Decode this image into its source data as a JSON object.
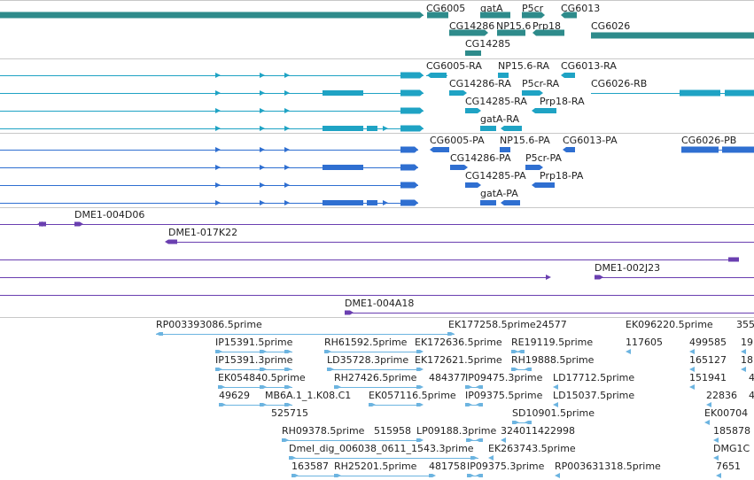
{
  "colors": {
    "gene": "#2e8b8b",
    "mrna": "#1fa3c4",
    "protein": "#2f6fd1",
    "clone": "#6a3fb0",
    "est": "#6cb4e0",
    "divider": "#c8c8c8"
  },
  "tracks": [
    {
      "name": "gene",
      "color": "#2e8b8b",
      "features": [
        {
          "label": "CG6005"
        },
        {
          "label": "gatA"
        },
        {
          "label": "P5cr"
        },
        {
          "label": "CG6013"
        },
        {
          "label": "CG14286"
        },
        {
          "label": "NP15.6"
        },
        {
          "label": "Prp18"
        },
        {
          "label": "CG6026"
        },
        {
          "label": "CG14285"
        }
      ]
    },
    {
      "name": "mrna",
      "color": "#1fa3c4",
      "features": [
        {
          "label": "CG6005-RA"
        },
        {
          "label": "NP15.6-RA"
        },
        {
          "label": "CG6013-RA"
        },
        {
          "label": "CG14286-RA"
        },
        {
          "label": "P5cr-RA"
        },
        {
          "label": "CG6026-RB"
        },
        {
          "label": "CG14285-RA"
        },
        {
          "label": "Prp18-RA"
        },
        {
          "label": "gatA-RA"
        }
      ]
    },
    {
      "name": "protein",
      "color": "#2f6fd1",
      "features": [
        {
          "label": "CG6005-PA"
        },
        {
          "label": "NP15.6-PA"
        },
        {
          "label": "CG6013-PA"
        },
        {
          "label": "CG6026-PB"
        },
        {
          "label": "CG14286-PA"
        },
        {
          "label": "P5cr-PA"
        },
        {
          "label": "CG14285-PA"
        },
        {
          "label": "Prp18-PA"
        },
        {
          "label": "gatA-PA"
        }
      ]
    },
    {
      "name": "clone",
      "color": "#6a3fb0",
      "features": [
        {
          "label": "DME1-004D06"
        },
        {
          "label": "DME1-017K22"
        },
        {
          "label": "DME1-002J23"
        },
        {
          "label": "DME1-004A18"
        }
      ]
    },
    {
      "name": "est",
      "color": "#6cb4e0",
      "features": [
        {
          "label": "RP003393086.5prime"
        },
        {
          "label": "EK177258.5prime24577"
        },
        {
          "label": "EK096220.5prime"
        },
        {
          "label": "355"
        },
        {
          "label": "IP15391.5prime"
        },
        {
          "label": "RH61592.5prime"
        },
        {
          "label": "EK172636.5prime"
        },
        {
          "label": "RE19119.5prime"
        },
        {
          "label": "117605"
        },
        {
          "label": "499585"
        },
        {
          "label": "19"
        },
        {
          "label": "IP15391.3prime"
        },
        {
          "label": "LD35728.3prime"
        },
        {
          "label": "EK172621.5prime"
        },
        {
          "label": "RH19888.5prime"
        },
        {
          "label": "165127"
        },
        {
          "label": "18"
        },
        {
          "label": "EK054840.5prime"
        },
        {
          "label": "RH27426.5prime"
        },
        {
          "label": "484377"
        },
        {
          "label": "IP09475.3prime"
        },
        {
          "label": "LD17712.5prime"
        },
        {
          "label": "151941"
        },
        {
          "label": "4"
        },
        {
          "label": "49629"
        },
        {
          "label": "MB6A.1_1.K08.C1"
        },
        {
          "label": "EK057116.5prime"
        },
        {
          "label": "IP09375.5prime"
        },
        {
          "label": "LD15037.5prime"
        },
        {
          "label": "22836"
        },
        {
          "label": "4"
        },
        {
          "label": "525715"
        },
        {
          "label": "SD10901.5prime"
        },
        {
          "label": "EK00704"
        },
        {
          "label": "RH09378.5prime"
        },
        {
          "label": "515958"
        },
        {
          "label": "LP09188.3prime"
        },
        {
          "label": "324011422998"
        },
        {
          "label": "185878"
        },
        {
          "label": "Dmel_dig_006038_0611_1543.3prime"
        },
        {
          "label": "EK263743.5prime"
        },
        {
          "label": "DMG1C"
        },
        {
          "label": "163587"
        },
        {
          "label": "RH25201.5prime"
        },
        {
          "label": "481758"
        },
        {
          "label": "IP09375.3prime"
        },
        {
          "label": "RP003631318.5prime"
        },
        {
          "label": "7651"
        }
      ]
    }
  ]
}
